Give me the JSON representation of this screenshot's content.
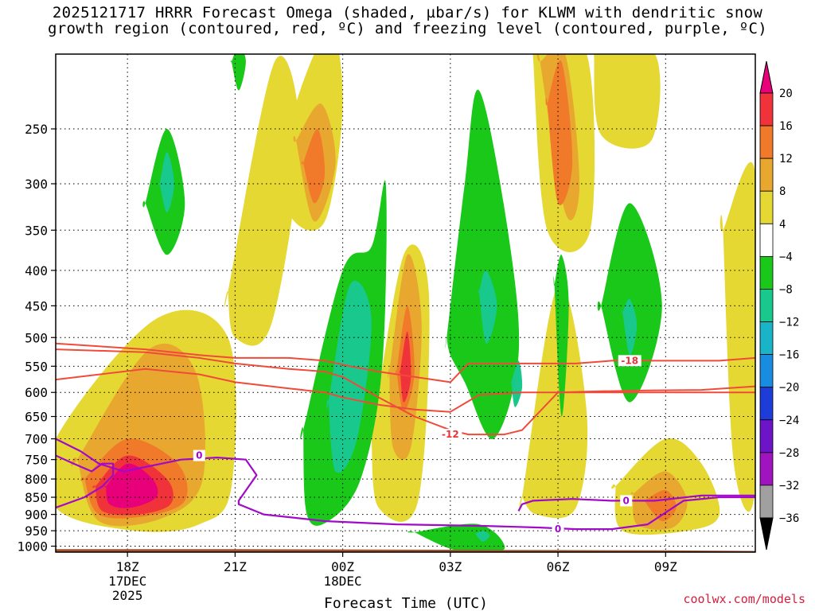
{
  "chart_data": {
    "type": "heatmap",
    "title_line1": "2025121717 HRRR Forecast Omega (shaded, µbar/s) for KLWM with dendritic snow",
    "title_line2": "growth region (contoured, red, ºC) and freezing level (contoured, purple, ºC)",
    "xlabel": "Forecast Time (UTC)",
    "credit": "coolwx.com/models",
    "x_range_hours": [
      -1.0,
      18.5
    ],
    "y_range_hPa": [
      1020,
      195
    ],
    "x_ticks": [
      {
        "hour": 1,
        "label": "18Z",
        "sub1": "17DEC",
        "sub2": "2025"
      },
      {
        "hour": 4,
        "label": "21Z",
        "sub1": "",
        "sub2": ""
      },
      {
        "hour": 7,
        "label": "00Z",
        "sub1": "18DEC",
        "sub2": ""
      },
      {
        "hour": 10,
        "label": "03Z",
        "sub1": "",
        "sub2": ""
      },
      {
        "hour": 13,
        "label": "06Z",
        "sub1": "",
        "sub2": ""
      },
      {
        "hour": 16,
        "label": "09Z",
        "sub1": "",
        "sub2": ""
      }
    ],
    "y_ticks": [
      {
        "p": 250,
        "label": "250"
      },
      {
        "p": 300,
        "label": "300"
      },
      {
        "p": 350,
        "label": "350"
      },
      {
        "p": 400,
        "label": "400"
      },
      {
        "p": 450,
        "label": "450"
      },
      {
        "p": 500,
        "label": "500"
      },
      {
        "p": 550,
        "label": "550"
      },
      {
        "p": 600,
        "label": "600"
      },
      {
        "p": 650,
        "label": "650"
      },
      {
        "p": 700,
        "label": "700"
      },
      {
        "p": 750,
        "label": "750"
      },
      {
        "p": 800,
        "label": "800"
      },
      {
        "p": 850,
        "label": "850"
      },
      {
        "p": 900,
        "label": "900"
      },
      {
        "p": 950,
        "label": "950"
      },
      {
        "p": 1000,
        "label": "1000"
      }
    ],
    "colorbar": {
      "bins": [
        {
          "color": "#e8007a"
        },
        {
          "color": "#f0333a"
        },
        {
          "color": "#f07a2a"
        },
        {
          "color": "#e8a830"
        },
        {
          "color": "#e6d832"
        },
        {
          "color": "#ffffff"
        },
        {
          "color": "#19c819"
        },
        {
          "color": "#19c88c"
        },
        {
          "color": "#19b4c8"
        },
        {
          "color": "#1a8ce0"
        },
        {
          "color": "#1e3cd8"
        },
        {
          "color": "#6e14c8"
        },
        {
          "color": "#a014c0"
        },
        {
          "color": "#a0a0a0"
        },
        {
          "color": "#000000"
        }
      ],
      "labels": [
        "20",
        "16",
        "12",
        "8",
        "4",
        "−4",
        "−8",
        "−12",
        "−16",
        "−20",
        "−24",
        "−28",
        "−32",
        "−36"
      ]
    },
    "omega_shading": [
      {
        "level": "4 to 8",
        "color": "#e6d832",
        "regions": [
          {
            "x": [
              -1.0,
              1.8,
              3.8,
              3.9,
              3.0,
              1.2,
              -1.0
            ],
            "p": [
              700,
              470,
              500,
              820,
              930,
              950,
              880
            ]
          },
          {
            "x": [
              3.8,
              5.1,
              5.8,
              5.0,
              4.0,
              3.8
            ],
            "p": [
              430,
              200,
              260,
              480,
              500,
              430
            ]
          },
          {
            "x": [
              5.5,
              6.6,
              7.0,
              6.5,
              5.5
            ],
            "p": [
              250,
              180,
              230,
              340,
              330
            ]
          },
          {
            "x": [
              7.8,
              8.7,
              9.4,
              9.1,
              8.0,
              7.8
            ],
            "p": [
              700,
              380,
              430,
              860,
              880,
              700
            ]
          },
          {
            "x": [
              12.3,
              13.8,
              13.9,
              12.7,
              12.3
            ],
            "p": [
              195,
              195,
              350,
              350,
              195
            ]
          },
          {
            "x": [
              14.0,
              15.7,
              15.6,
              14.2,
              14.0
            ],
            "p": [
              195,
              195,
              260,
              255,
              195
            ]
          },
          {
            "x": [
              12.0,
              13.0,
              13.8,
              13.5,
              12.4,
              12.0
            ],
            "p": [
              850,
              420,
              640,
              880,
              900,
              850
            ]
          },
          {
            "x": [
              14.6,
              16.0,
              17.0,
              17.5,
              16.6,
              14.8,
              14.6
            ],
            "p": [
              820,
              700,
              760,
              900,
              950,
              950,
              820
            ]
          },
          {
            "x": [
              17.6,
              18.5,
              18.5,
              17.9,
              17.6
            ],
            "p": [
              350,
              290,
              820,
              760,
              350
            ]
          }
        ]
      },
      {
        "level": "8 to 12",
        "color": "#e8a830",
        "regions": [
          {
            "x": [
              -0.4,
              1.6,
              2.9,
              3.1,
              2.0,
              0.2,
              -0.4
            ],
            "p": [
              750,
              520,
              560,
              800,
              910,
              920,
              750
            ]
          },
          {
            "x": [
              5.7,
              6.4,
              6.8,
              6.2,
              5.7
            ],
            "p": [
              260,
              230,
              280,
              340,
              260
            ]
          },
          {
            "x": [
              8.3,
              8.8,
              9.2,
              8.9,
              8.4,
              8.3
            ],
            "p": [
              560,
              380,
              480,
              720,
              720,
              560
            ]
          },
          {
            "x": [
              12.5,
              13.2,
              13.6,
              13.2,
              12.5
            ],
            "p": [
              200,
              195,
              300,
              330,
              200
            ]
          },
          {
            "x": [
              15.1,
              16.0,
              16.6,
              16.2,
              15.2,
              15.1
            ],
            "p": [
              840,
              780,
              860,
              940,
              930,
              840
            ]
          }
        ]
      },
      {
        "level": "12 to 16",
        "color": "#f07a2a",
        "regions": [
          {
            "x": [
              -0.2,
              1.0,
              2.4,
              2.6,
              1.5,
              0.2,
              -0.2
            ],
            "p": [
              800,
              700,
              760,
              860,
              905,
              900,
              800
            ]
          },
          {
            "x": [
              5.9,
              6.3,
              6.5,
              6.2,
              5.9
            ],
            "p": [
              280,
              250,
              290,
              320,
              280
            ]
          },
          {
            "x": [
              8.5,
              8.8,
              9.0,
              8.7,
              8.5
            ],
            "p": [
              560,
              450,
              560,
              640,
              560
            ]
          },
          {
            "x": [
              12.7,
              13.1,
              13.4,
              13.0,
              12.7
            ],
            "p": [
              230,
              200,
              280,
              320,
              230
            ]
          },
          {
            "x": [
              15.4,
              16.0,
              16.3,
              15.9,
              15.4
            ],
            "p": [
              860,
              830,
              880,
              920,
              860
            ]
          }
        ]
      },
      {
        "level": "16 to 20",
        "color": "#f0333a",
        "regions": [
          {
            "x": [
              0.1,
              1.0,
              2.1,
              2.2,
              1.3,
              0.3,
              0.1
            ],
            "p": [
              820,
              740,
              800,
              870,
              900,
              890,
              820
            ]
          },
          {
            "x": [
              8.6,
              8.8,
              8.9,
              8.7,
              8.6
            ],
            "p": [
              560,
              490,
              570,
              620,
              560
            ]
          }
        ]
      },
      {
        "level": "20+",
        "color": "#e8007a",
        "regions": [
          {
            "x": [
              0.4,
              1.0,
              1.7,
              1.8,
              1.1,
              0.5,
              0.4
            ],
            "p": [
              820,
              760,
              800,
              850,
              880,
              870,
              820
            ]
          }
        ]
      },
      {
        "level": "-4 to -8",
        "color": "#19c819",
        "regions": [
          {
            "x": [
              1.5,
              2.1,
              2.6,
              2.1,
              1.5
            ],
            "p": [
              320,
              250,
              320,
              380,
              320
            ]
          },
          {
            "x": [
              3.9,
              4.1,
              4.3,
              4.1,
              3.9
            ],
            "p": [
              200,
              190,
              200,
              220,
              200
            ]
          },
          {
            "x": [
              5.9,
              7.0,
              7.8,
              8.2,
              8.1,
              7.5,
              6.6,
              6.0,
              5.9
            ],
            "p": [
              680,
              400,
              370,
              300,
              550,
              800,
              920,
              900,
              680
            ]
          },
          {
            "x": [
              9.9,
              10.4,
              10.8,
              11.6,
              11.9,
              11.2,
              10.4,
              10.0,
              9.9
            ],
            "p": [
              500,
              300,
              220,
              350,
              530,
              700,
              580,
              530,
              500
            ]
          },
          {
            "x": [
              12.9,
              13.1,
              13.3,
              13.1,
              12.9
            ],
            "p": [
              420,
              380,
              450,
              650,
              420
            ]
          },
          {
            "x": [
              14.2,
              15.0,
              15.9,
              15.0,
              14.2
            ],
            "p": [
              450,
              320,
              450,
              620,
              450
            ]
          },
          {
            "x": [
              9.0,
              10.8,
              11.5,
              10.2,
              9.0
            ],
            "p": [
              955,
              930,
              1010,
              1015,
              955
            ]
          }
        ]
      },
      {
        "level": "-8 to -12",
        "color": "#19c88c",
        "regions": [
          {
            "x": [
              1.9,
              2.1,
              2.3,
              2.1,
              1.9
            ],
            "p": [
              300,
              270,
              300,
              330,
              300
            ]
          },
          {
            "x": [
              6.6,
              7.2,
              7.8,
              7.4,
              6.8,
              6.6
            ],
            "p": [
              620,
              420,
              470,
              700,
              780,
              620
            ]
          },
          {
            "x": [
              10.8,
              11.0,
              11.3,
              11.0,
              10.8
            ],
            "p": [
              430,
              400,
              450,
              510,
              430
            ]
          },
          {
            "x": [
              11.7,
              11.9,
              12.0,
              11.8,
              11.7
            ],
            "p": [
              580,
              540,
              590,
              630,
              580
            ]
          },
          {
            "x": [
              14.8,
              15.0,
              15.2,
              15.0,
              14.8
            ],
            "p": [
              460,
              440,
              480,
              530,
              460
            ]
          },
          {
            "x": [
              10.7,
              10.9,
              11.1,
              10.9,
              10.7
            ],
            "p": [
              960,
              950,
              965,
              985,
              960
            ]
          }
        ]
      }
    ],
    "dendritic_growth_contours": [
      {
        "label": "-18",
        "color": "#f04a3a",
        "x": [
          -1.0,
          1.5,
          3.0,
          4.0,
          5.5,
          6.5,
          7.0,
          8.0,
          9.0,
          10.0,
          10.8,
          12.0,
          13.0,
          14.0,
          15.5,
          17.0,
          18.5
        ],
        "p": [
          575,
          555,
          565,
          580,
          592,
          600,
          610,
          625,
          635,
          640,
          605,
          600,
          600,
          598,
          596,
          595,
          588
        ]
      },
      {
        "label": "-12",
        "color": "#f04a3a",
        "x": [
          -1.0,
          1.5,
          3.0,
          4.0,
          5.5,
          6.5,
          7.0,
          8.0,
          9.0,
          10.0,
          10.5,
          11.5,
          12.0,
          13.0,
          14.0,
          15.5,
          17.0,
          18.5
        ],
        "p": [
          520,
          525,
          535,
          545,
          555,
          560,
          570,
          610,
          650,
          680,
          690,
          690,
          680,
          600,
          600,
          600,
          600,
          600
        ]
      },
      {
        "label": "-18",
        "color": "#f04a3a",
        "x": [
          -1.0,
          1.5,
          3.0,
          4.0,
          5.5,
          6.5,
          7.2,
          8.0,
          9.0,
          10.0,
          10.5,
          11.5,
          12.5,
          13.5,
          14.5,
          15.5,
          16.5,
          17.5,
          18.5
        ],
        "p": [
          510,
          520,
          530,
          535,
          535,
          540,
          550,
          560,
          570,
          580,
          545,
          545,
          545,
          545,
          540,
          540,
          540,
          540,
          535
        ]
      }
    ],
    "freezing_contours": [
      {
        "label": "0",
        "color": "#a00ac8",
        "x": [
          -1.0,
          -0.3,
          0.2,
          0.9,
          2.5,
          3.5,
          4.3,
          4.6,
          4.1,
          4.1,
          4.8,
          6.5,
          8.5,
          11.0,
          12.5,
          13.5,
          14.5,
          15.5,
          16.5,
          17.5,
          18.5
        ],
        "p": [
          700,
          730,
          760,
          780,
          750,
          745,
          750,
          790,
          860,
          870,
          900,
          920,
          930,
          935,
          940,
          945,
          945,
          930,
          860,
          850,
          850
        ]
      },
      {
        "label": "0",
        "color": "#a00ac8",
        "x": [
          -1.0,
          -0.5,
          0.0,
          0.3,
          0.6,
          0.6,
          0.3,
          -0.2,
          -1.0
        ],
        "p": [
          740,
          760,
          780,
          760,
          760,
          790,
          820,
          850,
          880
        ]
      },
      {
        "label": "0",
        "color": "#a00ac8",
        "x": [
          11.9,
          12.0,
          12.3,
          13.4,
          14.5,
          15.7,
          17.0,
          18.5
        ],
        "p": [
          890,
          870,
          860,
          855,
          860,
          860,
          845,
          845
        ]
      }
    ],
    "contour_labels": [
      {
        "text": "-12",
        "color": "#e8333a",
        "x": 10.0,
        "p": 690
      },
      {
        "text": "-18",
        "color": "#e8333a",
        "x": 15.0,
        "p": 540
      },
      {
        "text": "0",
        "color": "#a00ac8",
        "x": 3.0,
        "p": 740
      },
      {
        "text": "0",
        "color": "#a00ac8",
        "x": 14.9,
        "p": 860
      },
      {
        "text": "0",
        "color": "#a00ac8",
        "x": 13.0,
        "p": 945
      }
    ],
    "terrain": {
      "color": "#a0522d",
      "x": [
        -1.0,
        4.0,
        7.0,
        10.0,
        13.0,
        16.0,
        18.5
      ],
      "p": [
        1010,
        1010,
        1011,
        1012,
        1013,
        1014,
        1016
      ]
    }
  }
}
